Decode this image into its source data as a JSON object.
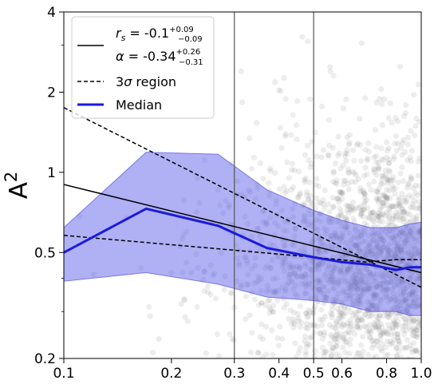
{
  "chart_data": {
    "type": "line",
    "title": "",
    "xlabel": "",
    "ylabel": "A²",
    "ylabel_parts": {
      "base": "A",
      "sup": "2"
    },
    "xscale": "log",
    "yscale": "log",
    "xlim": [
      0.1,
      1.0
    ],
    "ylim": [
      0.2,
      4.0
    ],
    "x_ticks": [
      {
        "value": 0.1,
        "label": "0.1"
      },
      {
        "value": 0.2,
        "label": "0.2"
      },
      {
        "value": 0.3,
        "label": "0.3"
      },
      {
        "value": 0.4,
        "label": "0.4"
      },
      {
        "value": 0.5,
        "label": "0.5"
      },
      {
        "value": 0.6,
        "label": "0.6"
      },
      {
        "value": 0.8,
        "label": "0.8"
      },
      {
        "value": 1.0,
        "label": "1.0"
      }
    ],
    "y_ticks": [
      {
        "value": 0.2,
        "label": "0.2"
      },
      {
        "value": 0.5,
        "label": "0.5"
      },
      {
        "value": 1.0,
        "label": "1"
      },
      {
        "value": 2.0,
        "label": "2"
      },
      {
        "value": 4.0,
        "label": "4"
      }
    ],
    "vertical_lines": [
      0.3,
      0.5
    ],
    "grid": false,
    "legend_position": "top-left",
    "legend": {
      "fit_label": {
        "rs_symbol": "r",
        "rs_sub": "s",
        "rs_value": " = -0.1",
        "rs_err_plus": "+0.09",
        "rs_err_minus": "−0.09",
        "alpha_symbol": "α",
        "alpha_value": " = -0.34",
        "alpha_err_plus": "+0.26",
        "alpha_err_minus": "−0.31"
      },
      "sigma_label": {
        "number": "3",
        "symbol": "σ",
        "text": " region"
      },
      "median_label": "Median"
    },
    "series": [
      {
        "name": "Median",
        "color": "#1a1adb",
        "x": [
          0.1,
          0.17,
          0.27,
          0.37,
          0.5,
          0.6,
          0.72,
          0.85,
          0.93,
          1.0
        ],
        "y": [
          0.5,
          0.73,
          0.63,
          0.52,
          0.48,
          0.46,
          0.45,
          0.43,
          0.44,
          0.44
        ]
      },
      {
        "name": "rs/α fit",
        "color": "#000000",
        "x": [
          0.1,
          1.0
        ],
        "y": [
          0.9,
          0.42
        ]
      },
      {
        "name": "3σ region upper",
        "color": "#000000",
        "dash": true,
        "x": [
          0.1,
          1.0
        ],
        "y": [
          1.75,
          0.37
        ]
      },
      {
        "name": "3σ region lower",
        "color": "#000000",
        "dash": true,
        "x": [
          0.1,
          0.3,
          0.5,
          0.7,
          0.85,
          1.0
        ],
        "y": [
          0.58,
          0.51,
          0.48,
          0.46,
          0.47,
          0.47
        ]
      }
    ],
    "band": {
      "color": "#5050e6",
      "x": [
        0.1,
        0.17,
        0.27,
        0.37,
        0.5,
        0.6,
        0.72,
        0.85,
        0.93,
        1.0
      ],
      "upper": [
        0.62,
        1.19,
        1.17,
        0.86,
        0.72,
        0.66,
        0.62,
        0.62,
        0.64,
        0.65
      ],
      "lower": [
        0.39,
        0.42,
        0.38,
        0.34,
        0.33,
        0.32,
        0.3,
        0.3,
        0.29,
        0.29
      ]
    },
    "scatter": {
      "color": "#808080",
      "note": "dense cloud of grey points"
    }
  }
}
